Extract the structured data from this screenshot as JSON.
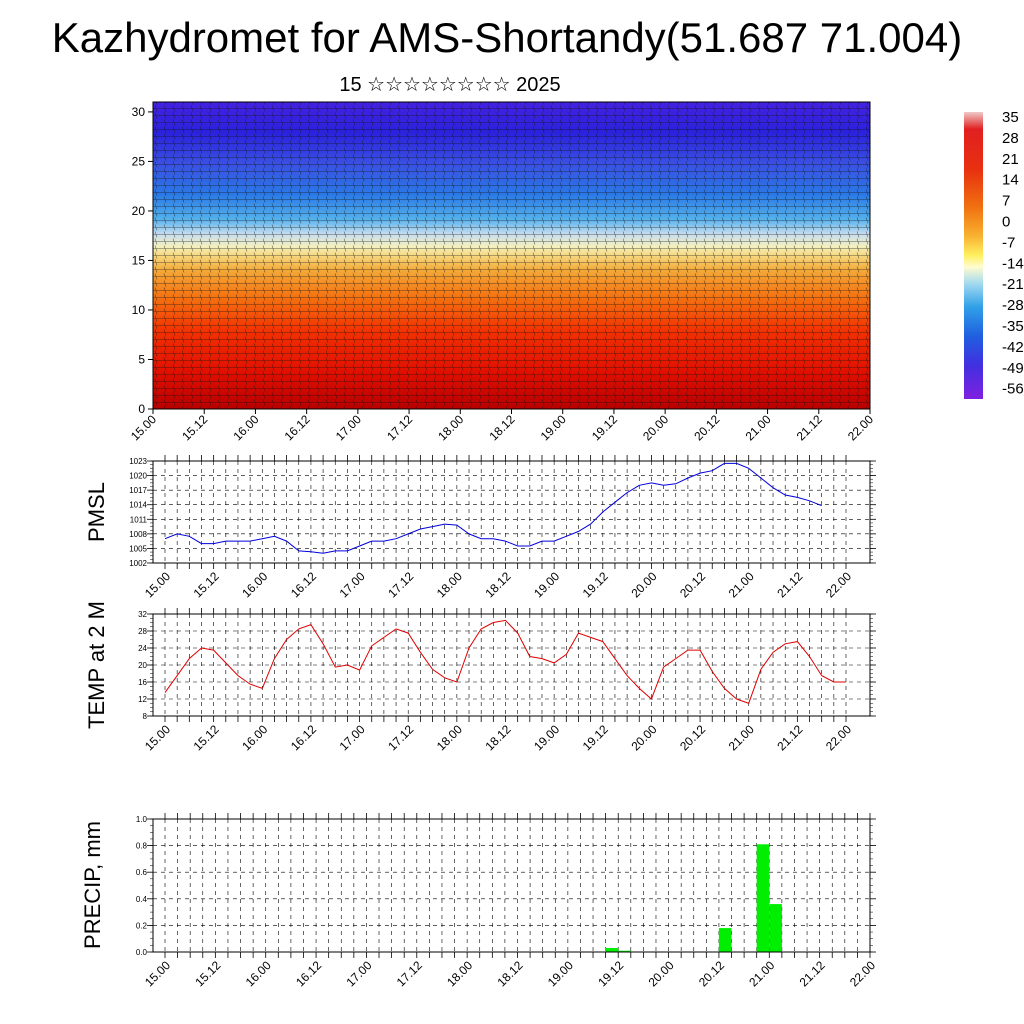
{
  "title": "Kazhydromet for AMS-Shortandy(51.687 71.004)",
  "subtitle": "15 ☆☆☆☆☆☆☆☆ 2025",
  "colors": {
    "pmsl": "#0000dd",
    "temp": "#dd0000",
    "precip": "#00ee00"
  },
  "chart_data": [
    {
      "type": "heatmap",
      "name": "cross-section",
      "x_ticks": [
        "15.00",
        "15.12",
        "16.00",
        "16.12",
        "17.00",
        "17.12",
        "18.00",
        "18.12",
        "19.00",
        "19.12",
        "20.00",
        "20.12",
        "21.00",
        "21.12",
        "22.00"
      ],
      "y_ticks": [
        "0",
        "5",
        "10",
        "15",
        "20",
        "25",
        "30"
      ],
      "ylim": [
        0,
        31
      ],
      "colorbar_labels": [
        "35",
        "28",
        "21",
        "14",
        "7",
        "0",
        "-7",
        "-14",
        "-21",
        "-28",
        "-35",
        "-42",
        "-49",
        "-56"
      ]
    },
    {
      "type": "line",
      "name": "PMSL",
      "ylabel": "PMSL",
      "ylim": [
        1002,
        1023
      ],
      "y_ticks": [
        "1002",
        "1005",
        "1008",
        "1011",
        "1014",
        "1017",
        "1020",
        "1023"
      ],
      "x_ticks": [
        "15.00",
        "15.12",
        "16.00",
        "16.12",
        "17.00",
        "17.12",
        "18.00",
        "18.12",
        "19.00",
        "19.12",
        "20.00",
        "20.12",
        "21.00",
        "21.12",
        "22.00"
      ],
      "values": [
        1007,
        1008,
        1007.5,
        1006,
        1006,
        1006.5,
        1006.5,
        1006.5,
        1007,
        1007.5,
        1006.5,
        1004.5,
        1004.3,
        1004,
        1004.5,
        1004.5,
        1005.5,
        1006.5,
        1006.5,
        1007,
        1008,
        1009,
        1009.5,
        1010,
        1009.8,
        1008,
        1007,
        1007,
        1006.5,
        1005.5,
        1005.5,
        1006.5,
        1006.5,
        1007.5,
        1008.5,
        1010,
        1012.5,
        1014.5,
        1016.5,
        1018,
        1018.5,
        1018,
        1018.3,
        1019.5,
        1020.5,
        1021,
        1022.5,
        1022.5,
        1021.5,
        1019.5,
        1017.5,
        1016,
        1015.5,
        1014.8,
        1013.8
      ]
    },
    {
      "type": "line",
      "name": "TEMP",
      "ylabel": "TEMP at 2 M",
      "ylim": [
        8,
        32
      ],
      "y_ticks": [
        "8",
        "12",
        "16",
        "20",
        "24",
        "28",
        "32"
      ],
      "x_ticks": [
        "15.00",
        "15.12",
        "16.00",
        "16.12",
        "17.00",
        "17.12",
        "18.00",
        "18.12",
        "19.00",
        "19.12",
        "20.00",
        "20.12",
        "21.00",
        "21.12",
        "22.00"
      ],
      "values": [
        13.5,
        17.5,
        21.5,
        24,
        23.5,
        20.5,
        17.5,
        15.5,
        14.5,
        21.5,
        26,
        28.5,
        29.5,
        25,
        19.5,
        20,
        18.8,
        24.5,
        26.5,
        28.5,
        27.5,
        23,
        19,
        17,
        16,
        24,
        28.5,
        30,
        30.5,
        27.5,
        22,
        21.5,
        20.5,
        22.5,
        27.5,
        26.5,
        25.5,
        21.5,
        17.5,
        14.5,
        12,
        19.5,
        21.5,
        23.5,
        23.5,
        18.5,
        14.5,
        12,
        11,
        19,
        23,
        25,
        25.5,
        22,
        17.5,
        16,
        16
      ]
    },
    {
      "type": "bar",
      "name": "PRECIP",
      "ylabel": "PRECIP, mm",
      "ylim": [
        0,
        1.0
      ],
      "y_ticks": [
        "0.0",
        "0.2",
        "0.4",
        "0.6",
        "0.8",
        "1.0"
      ],
      "x_ticks": [
        "15.00",
        "15.12",
        "16.00",
        "16.12",
        "17.00",
        "17.12",
        "18.00",
        "18.12",
        "19.00",
        "19.12",
        "20.00",
        "20.12",
        "21.00",
        "21.12",
        "22.00"
      ],
      "bars": [
        {
          "x": 35.5,
          "value": 0.03
        },
        {
          "x": 36.5,
          "value": 0.01
        },
        {
          "x": 44.5,
          "value": 0.18
        },
        {
          "x": 47.5,
          "value": 0.81
        },
        {
          "x": 48.5,
          "value": 0.36
        }
      ]
    }
  ]
}
